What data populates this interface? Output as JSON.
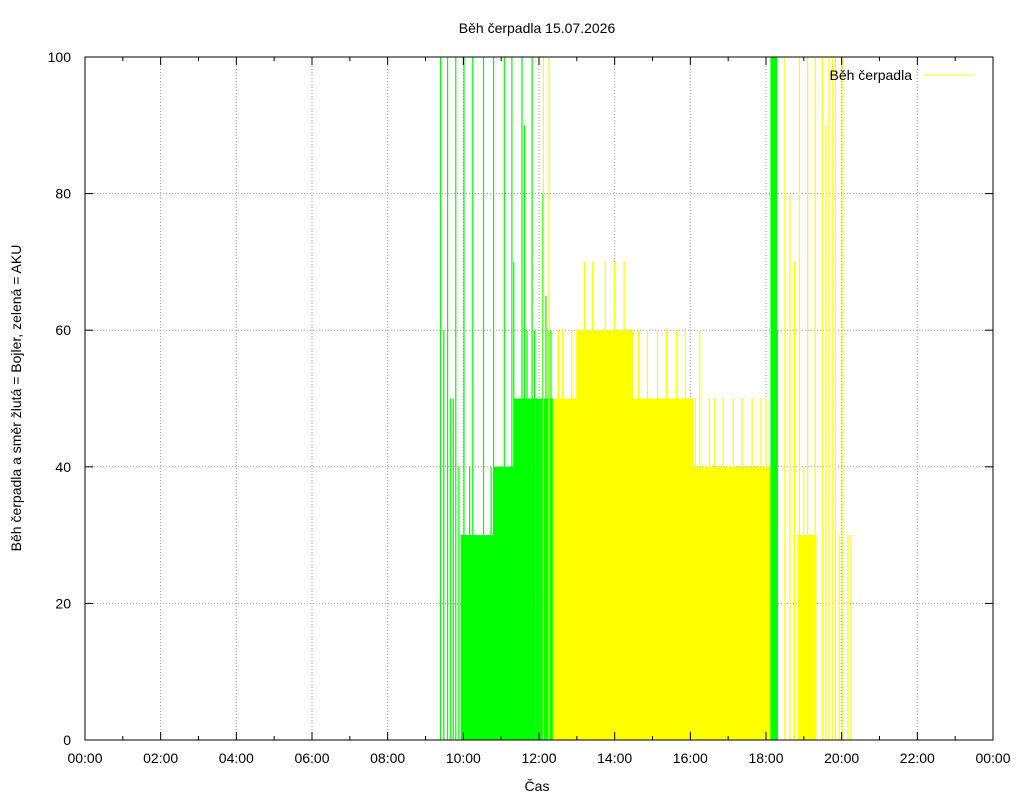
{
  "chart_data": {
    "type": "bar",
    "title": "Běh čerpadla 15.07.2026",
    "xlabel": "Čas",
    "ylabel": "Běh čerpadla a směr žlutá = Bojler, zelená = AKU",
    "xlim": [
      "00:00",
      "24:00"
    ],
    "ylim": [
      0,
      100
    ],
    "grid": true,
    "legend_position": "top-right",
    "x_tick_labels": [
      "00:00",
      "02:00",
      "04:00",
      "06:00",
      "08:00",
      "10:00",
      "12:00",
      "14:00",
      "16:00",
      "18:00",
      "20:00",
      "22:00",
      "00:00"
    ],
    "y_tick_labels": [
      "0",
      "20",
      "40",
      "60",
      "80",
      "100"
    ],
    "legend": {
      "label": "Běh čerpadla",
      "color": "#ffff00"
    },
    "colors": {
      "bojler": "#ffff00",
      "aku": "#00ff00",
      "grid": "#a0a0a0"
    },
    "series": [
      {
        "direction": "AKU",
        "color": "#00ff00",
        "points": [
          [
            "09:24",
            100
          ],
          [
            "09:29",
            60
          ],
          [
            "09:35",
            100
          ],
          [
            "09:40",
            50
          ],
          [
            "09:44",
            50
          ],
          [
            "09:48",
            100
          ],
          [
            "09:53",
            40
          ],
          [
            "09:57",
            30
          ],
          [
            "10:01",
            100
          ],
          [
            "10:07",
            30
          ],
          [
            "10:10",
            40
          ],
          [
            "10:15",
            100
          ],
          [
            "10:19",
            30
          ],
          [
            "10:25",
            30
          ],
          [
            "10:32",
            100
          ],
          [
            "10:38",
            30
          ],
          [
            "10:44",
            40
          ],
          [
            "10:48",
            100
          ],
          [
            "10:52",
            30
          ],
          [
            "10:58",
            30
          ],
          [
            "11:05",
            100
          ],
          [
            "11:09",
            40
          ],
          [
            "11:13",
            40
          ],
          [
            "11:17",
            100
          ],
          [
            "11:20",
            70
          ],
          [
            "11:24",
            50
          ],
          [
            "11:28",
            50
          ],
          [
            "11:33",
            100
          ],
          [
            "11:37",
            90
          ],
          [
            "11:41",
            60
          ],
          [
            "11:45",
            50
          ],
          [
            "11:49",
            100
          ],
          [
            "11:53",
            60
          ],
          [
            "11:58",
            50
          ],
          [
            "12:02",
            50
          ],
          [
            "12:06",
            80
          ],
          [
            "12:11",
            65
          ],
          [
            "12:15",
            60
          ],
          [
            "12:19",
            60
          ]
        ],
        "bands": [
          [
            "09:56",
            "10:48",
            30
          ],
          [
            "10:48",
            "11:20",
            40
          ],
          [
            "11:20",
            "11:55",
            50
          ],
          [
            "11:55",
            "12:22",
            50
          ]
        ]
      },
      {
        "direction": "Bojler",
        "color": "#ffff00",
        "points": [
          [
            "12:07",
            100
          ],
          [
            "12:16",
            100
          ],
          [
            "12:31",
            60
          ],
          [
            "12:37",
            60
          ],
          [
            "12:45",
            50
          ],
          [
            "12:52",
            60
          ],
          [
            "13:00",
            60
          ],
          [
            "13:05",
            60
          ],
          [
            "13:12",
            70
          ],
          [
            "13:18",
            60
          ],
          [
            "13:25",
            70
          ],
          [
            "13:31",
            60
          ],
          [
            "13:38",
            50
          ],
          [
            "13:45",
            70
          ],
          [
            "13:52",
            60
          ],
          [
            "14:00",
            70
          ],
          [
            "14:08",
            60
          ],
          [
            "14:15",
            70
          ],
          [
            "14:22",
            60
          ],
          [
            "14:30",
            50
          ],
          [
            "14:38",
            60
          ],
          [
            "14:45",
            50
          ],
          [
            "14:52",
            60
          ],
          [
            "15:00",
            50
          ],
          [
            "15:08",
            60
          ],
          [
            "15:15",
            50
          ],
          [
            "15:22",
            60
          ],
          [
            "15:30",
            50
          ],
          [
            "15:38",
            60
          ],
          [
            "15:45",
            50
          ],
          [
            "15:52",
            60
          ],
          [
            "16:00",
            40
          ],
          [
            "16:08",
            50
          ],
          [
            "16:15",
            60
          ],
          [
            "16:22",
            40
          ],
          [
            "16:30",
            50
          ],
          [
            "16:38",
            50
          ],
          [
            "16:45",
            40
          ],
          [
            "16:52",
            50
          ],
          [
            "17:00",
            40
          ],
          [
            "17:08",
            50
          ],
          [
            "17:15",
            40
          ],
          [
            "17:22",
            50
          ],
          [
            "17:30",
            40
          ],
          [
            "17:38",
            50
          ],
          [
            "17:45",
            40
          ],
          [
            "17:52",
            50
          ],
          [
            "18:00",
            50
          ],
          [
            "18:30",
            100
          ],
          [
            "18:38",
            80
          ],
          [
            "18:45",
            70
          ],
          [
            "18:53",
            100
          ],
          [
            "19:00",
            40
          ],
          [
            "19:06",
            100
          ],
          [
            "19:12",
            30
          ],
          [
            "19:18",
            100
          ],
          [
            "19:30",
            100
          ],
          [
            "19:35",
            90
          ],
          [
            "19:40",
            100
          ],
          [
            "19:45",
            100
          ],
          [
            "19:50",
            100
          ],
          [
            "19:56",
            30
          ],
          [
            "20:02",
            100
          ],
          [
            "20:10",
            30
          ],
          [
            "20:15",
            30
          ]
        ],
        "bands": [
          [
            "12:22",
            "13:00",
            50
          ],
          [
            "13:00",
            "14:30",
            60
          ],
          [
            "14:30",
            "16:05",
            50
          ],
          [
            "16:05",
            "18:08",
            40
          ],
          [
            "18:50",
            "19:20",
            30
          ]
        ]
      },
      {
        "direction": "AKU",
        "color": "#00ff00",
        "points": [
          [
            "18:08",
            100
          ],
          [
            "18:10",
            100
          ],
          [
            "18:12",
            70
          ],
          [
            "18:15",
            100
          ],
          [
            "18:18",
            60
          ]
        ],
        "bands": [
          [
            "18:08",
            "18:18",
            100
          ]
        ]
      }
    ]
  }
}
